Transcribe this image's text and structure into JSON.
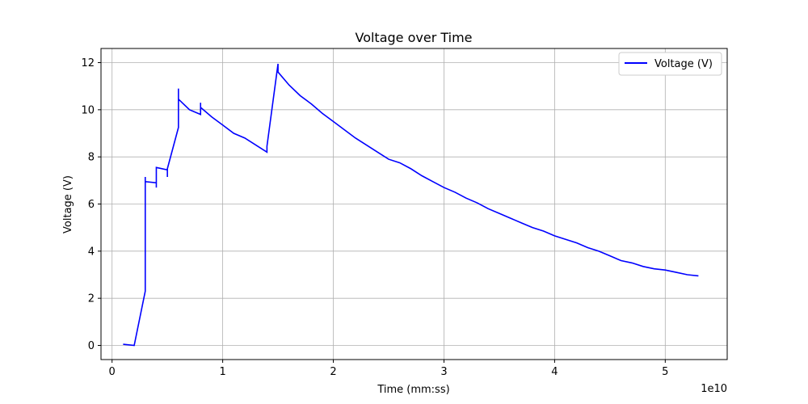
{
  "chart_data": {
    "type": "line",
    "title": "Voltage over Time",
    "xlabel": "Time (mm:ss)",
    "ylabel": "Voltage (V)",
    "x_offset_label": "1e10",
    "xlim": [
      -0.1,
      5.56
    ],
    "ylim": [
      -0.6,
      12.6
    ],
    "x_ticks": [
      0,
      1,
      2,
      3,
      4,
      5
    ],
    "x_tick_labels": [
      "0",
      "1",
      "2",
      "3",
      "4",
      "5"
    ],
    "y_ticks": [
      0,
      2,
      4,
      6,
      8,
      10,
      12
    ],
    "y_tick_labels": [
      "0",
      "2",
      "4",
      "6",
      "8",
      "10",
      "12"
    ],
    "grid": true,
    "legend_position": "top-right",
    "line_color": "#0000ff",
    "series": [
      {
        "name": "Voltage (V)",
        "x": [
          0.1,
          0.2,
          0.3,
          0.3,
          0.3,
          0.4,
          0.4,
          0.4,
          0.5,
          0.5,
          0.5,
          0.6,
          0.6,
          0.6,
          0.7,
          0.8,
          0.8,
          0.8,
          0.9,
          1.0,
          1.1,
          1.2,
          1.3,
          1.4,
          1.4,
          1.5,
          1.5,
          1.6,
          1.7,
          1.8,
          1.9,
          2.0,
          2.1,
          2.2,
          2.3,
          2.4,
          2.5,
          2.6,
          2.7,
          2.8,
          2.9,
          3.0,
          3.1,
          3.2,
          3.3,
          3.4,
          3.5,
          3.6,
          3.7,
          3.8,
          3.9,
          4.0,
          4.1,
          4.2,
          4.3,
          4.4,
          4.5,
          4.6,
          4.7,
          4.8,
          4.9,
          5.0,
          5.1,
          5.2,
          5.3
        ],
        "y": [
          0.05,
          0.0,
          2.3,
          7.15,
          6.95,
          6.9,
          6.7,
          7.55,
          7.45,
          7.15,
          7.5,
          9.25,
          10.9,
          10.45,
          10.0,
          9.8,
          10.3,
          10.1,
          9.7,
          9.35,
          9.0,
          8.8,
          8.5,
          8.2,
          8.45,
          11.95,
          11.6,
          11.05,
          10.6,
          10.25,
          9.85,
          9.5,
          9.15,
          8.8,
          8.5,
          8.2,
          7.9,
          7.75,
          7.5,
          7.2,
          6.95,
          6.7,
          6.5,
          6.25,
          6.05,
          5.8,
          5.6,
          5.4,
          5.2,
          5.0,
          4.85,
          4.65,
          4.5,
          4.35,
          4.15,
          4.0,
          3.8,
          3.6,
          3.5,
          3.35,
          3.25,
          3.2,
          3.1,
          3.0,
          2.95
        ]
      }
    ]
  }
}
